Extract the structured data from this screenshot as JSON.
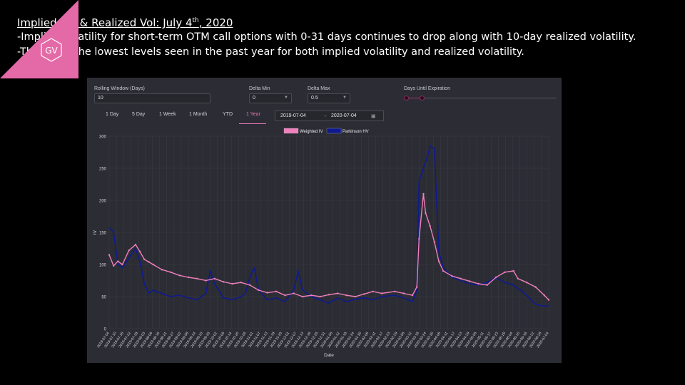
{
  "slide": {
    "title": "Implied Vol & Realized Vol: July 4",
    "title_sup": "th",
    "title_suffix": ", 2020",
    "bullets": [
      "-Implied Volatility for short-term OTM call options with 0-31 days continues to drop along with 10-day realized volatility.",
      "-These are the lowest levels seen in the past year for both implied volatility and realized volatility."
    ]
  },
  "controls": {
    "rolling_label": "Rolling Window (Days)",
    "rolling_value": "10",
    "delta_min_label": "Delta Min",
    "delta_min_value": "0",
    "delta_max_label": "Delta Max",
    "delta_max_value": "0.5",
    "expiration_label": "Days Until Expiration",
    "tabs": [
      "1 Day",
      "5 Day",
      "1 Week",
      "1 Month",
      "YTD",
      "1 Year"
    ],
    "active_tab": "1 Year",
    "date_start": "2019-07-04",
    "date_arrow": "→",
    "date_end": "2020-07-04"
  },
  "logo": {
    "text": "GV",
    "color": "#e46aa7"
  },
  "chart_data": {
    "type": "line",
    "xlabel": "Date",
    "ylabel": "IV",
    "ylim": [
      0,
      300
    ],
    "yticks": [
      0,
      50,
      100,
      150,
      200,
      250,
      300
    ],
    "legend_position": "top-center",
    "x_ticks": [
      "2019-07-04",
      "2019-07-10",
      "2019-07-16",
      "2019-07-22",
      "2019-07-28",
      "2019-08-03",
      "2019-08-09",
      "2019-08-15",
      "2019-08-21",
      "2019-08-27",
      "2019-09-02",
      "2019-09-08",
      "2019-09-14",
      "2019-09-20",
      "2019-09-26",
      "2019-10-02",
      "2019-10-08",
      "2019-10-14",
      "2019-10-20",
      "2019-10-26",
      "2019-11-01",
      "2019-11-07",
      "2019-11-13",
      "2019-11-19",
      "2019-11-25",
      "2019-12-01",
      "2019-12-07",
      "2019-12-13",
      "2019-12-19",
      "2019-12-25",
      "2019-12-31",
      "2020-01-06",
      "2020-01-12",
      "2020-01-18",
      "2020-01-24",
      "2020-01-30",
      "2020-02-05",
      "2020-02-11",
      "2020-02-17",
      "2020-02-23",
      "2020-02-29",
      "2020-03-06",
      "2020-03-12",
      "2020-03-18",
      "2020-03-24",
      "2020-03-30",
      "2020-04-05",
      "2020-04-11",
      "2020-04-17",
      "2020-04-23",
      "2020-04-29",
      "2020-05-05",
      "2020-05-11",
      "2020-05-17",
      "2020-05-23",
      "2020-05-29",
      "2020-06-04",
      "2020-06-10",
      "2020-06-16",
      "2020-06-22",
      "2020-06-28",
      "2020-07-04"
    ],
    "series": [
      {
        "name": "Weighted IV",
        "color": "#f07fbd",
        "points": [
          [
            0,
            115
          ],
          [
            0.01,
            98
          ],
          [
            0.02,
            105
          ],
          [
            0.03,
            100
          ],
          [
            0.045,
            122
          ],
          [
            0.06,
            131
          ],
          [
            0.07,
            120
          ],
          [
            0.08,
            108
          ],
          [
            0.09,
            104
          ],
          [
            0.1,
            100
          ],
          [
            0.12,
            92
          ],
          [
            0.14,
            88
          ],
          [
            0.16,
            83
          ],
          [
            0.18,
            80
          ],
          [
            0.2,
            78
          ],
          [
            0.22,
            75
          ],
          [
            0.24,
            78
          ],
          [
            0.26,
            73
          ],
          [
            0.28,
            70
          ],
          [
            0.3,
            72
          ],
          [
            0.32,
            68
          ],
          [
            0.34,
            60
          ],
          [
            0.36,
            56
          ],
          [
            0.38,
            58
          ],
          [
            0.4,
            52
          ],
          [
            0.42,
            55
          ],
          [
            0.44,
            50
          ],
          [
            0.46,
            52
          ],
          [
            0.48,
            50
          ],
          [
            0.5,
            53
          ],
          [
            0.52,
            55
          ],
          [
            0.54,
            52
          ],
          [
            0.56,
            50
          ],
          [
            0.58,
            54
          ],
          [
            0.6,
            58
          ],
          [
            0.62,
            55
          ],
          [
            0.65,
            58
          ],
          [
            0.67,
            55
          ],
          [
            0.69,
            52
          ],
          [
            0.7,
            65
          ],
          [
            0.705,
            140
          ],
          [
            0.715,
            210
          ],
          [
            0.72,
            180
          ],
          [
            0.73,
            160
          ],
          [
            0.74,
            135
          ],
          [
            0.75,
            105
          ],
          [
            0.76,
            90
          ],
          [
            0.78,
            82
          ],
          [
            0.8,
            78
          ],
          [
            0.82,
            74
          ],
          [
            0.84,
            70
          ],
          [
            0.86,
            68
          ],
          [
            0.88,
            80
          ],
          [
            0.9,
            88
          ],
          [
            0.92,
            90
          ],
          [
            0.93,
            78
          ],
          [
            0.95,
            72
          ],
          [
            0.97,
            65
          ],
          [
            0.99,
            52
          ],
          [
            1,
            45
          ]
        ]
      },
      {
        "name": "Parkinson HV",
        "color": "#0e1a8e",
        "points": [
          [
            0,
            158
          ],
          [
            0.01,
            150
          ],
          [
            0.02,
            100
          ],
          [
            0.03,
            95
          ],
          [
            0.045,
            110
          ],
          [
            0.06,
            125
          ],
          [
            0.07,
            105
          ],
          [
            0.08,
            70
          ],
          [
            0.09,
            55
          ],
          [
            0.1,
            60
          ],
          [
            0.12,
            55
          ],
          [
            0.14,
            50
          ],
          [
            0.16,
            52
          ],
          [
            0.18,
            48
          ],
          [
            0.2,
            45
          ],
          [
            0.22,
            55
          ],
          [
            0.23,
            90
          ],
          [
            0.24,
            70
          ],
          [
            0.26,
            48
          ],
          [
            0.28,
            45
          ],
          [
            0.3,
            50
          ],
          [
            0.31,
            55
          ],
          [
            0.32,
            80
          ],
          [
            0.33,
            95
          ],
          [
            0.34,
            60
          ],
          [
            0.36,
            45
          ],
          [
            0.38,
            48
          ],
          [
            0.4,
            42
          ],
          [
            0.42,
            60
          ],
          [
            0.43,
            90
          ],
          [
            0.44,
            60
          ],
          [
            0.46,
            50
          ],
          [
            0.48,
            45
          ],
          [
            0.5,
            40
          ],
          [
            0.52,
            48
          ],
          [
            0.54,
            42
          ],
          [
            0.56,
            46
          ],
          [
            0.58,
            48
          ],
          [
            0.6,
            45
          ],
          [
            0.62,
            50
          ],
          [
            0.65,
            52
          ],
          [
            0.67,
            48
          ],
          [
            0.69,
            42
          ],
          [
            0.7,
            60
          ],
          [
            0.705,
            230
          ],
          [
            0.715,
            250
          ],
          [
            0.72,
            260
          ],
          [
            0.725,
            270
          ],
          [
            0.73,
            285
          ],
          [
            0.74,
            280
          ],
          [
            0.745,
            200
          ],
          [
            0.75,
            120
          ],
          [
            0.76,
            95
          ],
          [
            0.78,
            80
          ],
          [
            0.8,
            75
          ],
          [
            0.82,
            70
          ],
          [
            0.84,
            68
          ],
          [
            0.86,
            72
          ],
          [
            0.88,
            80
          ],
          [
            0.9,
            72
          ],
          [
            0.92,
            68
          ],
          [
            0.94,
            58
          ],
          [
            0.96,
            45
          ],
          [
            0.97,
            38
          ],
          [
            0.99,
            35
          ],
          [
            1,
            36
          ]
        ]
      }
    ]
  }
}
